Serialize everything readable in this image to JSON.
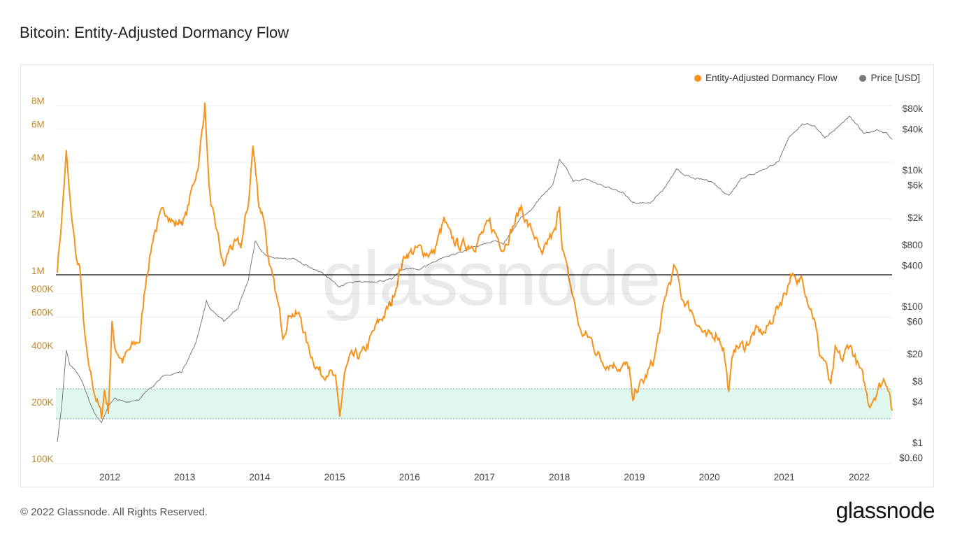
{
  "title": "Bitcoin: Entity-Adjusted Dormancy Flow",
  "footer": "© 2022 Glassnode. All Rights Reserved.",
  "logo": "glassnode",
  "watermark": "glassnode",
  "colors": {
    "flow": "#f7931a",
    "price": "#7a7a7a",
    "left_axis": "#c08a2e",
    "band": "#dff7ec",
    "threshold": "#333333"
  },
  "chart_data": {
    "type": "line",
    "title": "Bitcoin: Entity-Adjusted Dormancy Flow",
    "legend": [
      "Entity-Adjusted Dormancy Flow",
      "Price [USD]"
    ],
    "legend_placement": "top-right",
    "grid": true,
    "xlim": [
      2011.3,
      2022.44
    ],
    "x_ticks": [
      "2012",
      "2013",
      "2014",
      "2015",
      "2016",
      "2017",
      "2018",
      "2019",
      "2020",
      "2021",
      "2022"
    ],
    "left_axis": {
      "scale": "log",
      "ylim": [
        100000,
        8000000
      ],
      "ticks": [
        {
          "v": 8000000,
          "l": "8M"
        },
        {
          "v": 6000000,
          "l": "6M"
        },
        {
          "v": 4000000,
          "l": "4M"
        },
        {
          "v": 2000000,
          "l": "2M"
        },
        {
          "v": 1000000,
          "l": "1M"
        },
        {
          "v": 800000,
          "l": "800K"
        },
        {
          "v": 600000,
          "l": "600K"
        },
        {
          "v": 400000,
          "l": "400K"
        },
        {
          "v": 200000,
          "l": "200K"
        },
        {
          "v": 100000,
          "l": "100K"
        }
      ]
    },
    "right_axis": {
      "scale": "log",
      "ylim": [
        0.6,
        80000
      ],
      "ticks": [
        {
          "v": 80000,
          "l": "$80k"
        },
        {
          "v": 40000,
          "l": "$40k"
        },
        {
          "v": 10000,
          "l": "$10k"
        },
        {
          "v": 6000,
          "l": "$6k"
        },
        {
          "v": 2000,
          "l": "$2k"
        },
        {
          "v": 800,
          "l": "$800"
        },
        {
          "v": 400,
          "l": "$400"
        },
        {
          "v": 100,
          "l": "$100"
        },
        {
          "v": 60,
          "l": "$60"
        },
        {
          "v": 20,
          "l": "$20"
        },
        {
          "v": 8,
          "l": "$8"
        },
        {
          "v": 4,
          "l": "$4"
        },
        {
          "v": 1,
          "l": "$1"
        },
        {
          "v": 0.6,
          "l": "$0.60"
        }
      ]
    },
    "threshold_line": 950000,
    "band": [
      163000,
      235000
    ],
    "series": [
      {
        "name": "Entity-Adjusted Dormancy Flow",
        "axis": "left",
        "x": [
          2011.3,
          2011.36,
          2011.42,
          2011.47,
          2011.56,
          2011.61,
          2011.65,
          2011.7,
          2011.79,
          2011.89,
          2011.93,
          2011.98,
          2012.03,
          2012.07,
          2012.17,
          2012.31,
          2012.4,
          2012.49,
          2012.59,
          2012.68,
          2012.77,
          2012.87,
          2013.01,
          2013.1,
          2013.19,
          2013.27,
          2013.31,
          2013.35,
          2013.43,
          2013.52,
          2013.61,
          2013.75,
          2013.85,
          2013.91,
          2013.99,
          2014.06,
          2014.13,
          2014.22,
          2014.31,
          2014.41,
          2014.55,
          2014.64,
          2014.73,
          2014.83,
          2014.92,
          2015.01,
          2015.07,
          2015.13,
          2015.2,
          2015.39,
          2015.57,
          2015.76,
          2015.85,
          2015.95,
          2016.13,
          2016.32,
          2016.46,
          2016.55,
          2016.69,
          2016.88,
          2017.07,
          2017.25,
          2017.39,
          2017.49,
          2017.58,
          2017.67,
          2017.77,
          2017.86,
          2017.95,
          2018.0,
          2018.04,
          2018.11,
          2018.18,
          2018.28,
          2018.42,
          2018.56,
          2018.74,
          2018.93,
          2018.98,
          2019.02,
          2019.12,
          2019.26,
          2019.35,
          2019.44,
          2019.54,
          2019.63,
          2019.77,
          2019.86,
          2019.96,
          2020.1,
          2020.19,
          2020.26,
          2020.33,
          2020.47,
          2020.61,
          2020.75,
          2020.89,
          2021.03,
          2021.1,
          2021.17,
          2021.24,
          2021.31,
          2021.4,
          2021.47,
          2021.54,
          2021.62,
          2021.68,
          2021.78,
          2021.87,
          2021.96,
          2022.06,
          2022.13,
          2022.24,
          2022.34,
          2022.4,
          2022.44
        ],
        "values": [
          1035000,
          1910000,
          4200000,
          2280000,
          1130000,
          950000,
          515000,
          332000,
          234000,
          165000,
          234000,
          180000,
          515000,
          395000,
          332000,
          395000,
          430000,
          950000,
          1600000,
          1910000,
          2090000,
          1750000,
          1910000,
          2710000,
          3850000,
          7760000,
          3530000,
          2090000,
          1600000,
          1035000,
          1350000,
          1350000,
          2280000,
          4590000,
          2280000,
          1910000,
          1035000,
          730000,
          470000,
          610000,
          560000,
          395000,
          332000,
          279000,
          304000,
          255000,
          165000,
          279000,
          332000,
          362000,
          515000,
          670000,
          950000,
          1230000,
          1290000,
          1230000,
          1830000,
          1470000,
          1350000,
          1410000,
          1750000,
          1350000,
          1750000,
          2180000,
          1750000,
          1540000,
          1130000,
          1470000,
          1600000,
          2280000,
          1350000,
          950000,
          730000,
          470000,
          430000,
          332000,
          318000,
          304000,
          188000,
          234000,
          255000,
          332000,
          515000,
          800000,
          1035000,
          730000,
          610000,
          515000,
          430000,
          470000,
          395000,
          224000,
          395000,
          395000,
          470000,
          470000,
          610000,
          800000,
          990000,
          800000,
          950000,
          730000,
          560000,
          362000,
          332000,
          234000,
          362000,
          332000,
          413000,
          332000,
          255000,
          196000,
          234000,
          267000,
          244000,
          180000
        ]
      },
      {
        "name": "Price [USD]",
        "axis": "right",
        "x": [
          2011.3,
          2011.36,
          2011.42,
          2011.47,
          2011.56,
          2011.65,
          2011.79,
          2011.89,
          2011.98,
          2012.07,
          2012.21,
          2012.4,
          2012.54,
          2012.68,
          2012.96,
          2013.15,
          2013.29,
          2013.33,
          2013.52,
          2013.71,
          2013.85,
          2013.94,
          2014.03,
          2014.17,
          2014.45,
          2014.64,
          2014.83,
          2015.06,
          2015.2,
          2015.48,
          2015.76,
          2015.9,
          2016.13,
          2016.41,
          2016.69,
          2016.97,
          2017.16,
          2017.25,
          2017.49,
          2017.63,
          2017.77,
          2017.91,
          2018.0,
          2018.09,
          2018.18,
          2018.37,
          2018.56,
          2018.84,
          2018.98,
          2019.21,
          2019.4,
          2019.56,
          2019.77,
          2020.01,
          2020.26,
          2020.42,
          2020.61,
          2020.79,
          2020.93,
          2021.07,
          2021.24,
          2021.4,
          2021.54,
          2021.68,
          2021.87,
          2022.06,
          2022.24,
          2022.36,
          2022.44
        ],
        "values": [
          1,
          3.5,
          23,
          14,
          11,
          7,
          2.8,
          1.9,
          3.5,
          4.4,
          3.9,
          4.4,
          6.3,
          9,
          11,
          29,
          120,
          95,
          60,
          95,
          245,
          900,
          630,
          500,
          500,
          390,
          310,
          195,
          220,
          230,
          245,
          350,
          350,
          500,
          630,
          800,
          900,
          800,
          2050,
          2600,
          4200,
          5900,
          14000,
          10800,
          6700,
          7500,
          5900,
          4700,
          3300,
          3300,
          5300,
          10000,
          7500,
          7000,
          4200,
          7500,
          9000,
          11000,
          13500,
          31000,
          47000,
          45000,
          30000,
          39000,
          60000,
          35000,
          38000,
          35000,
          28000
        ]
      }
    ]
  }
}
